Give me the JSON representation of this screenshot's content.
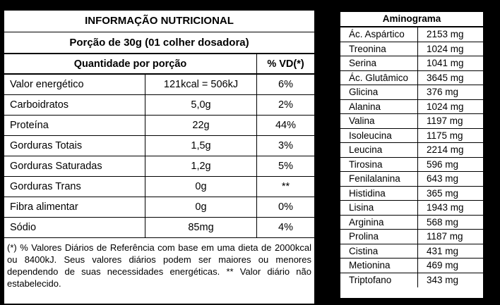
{
  "nutrition": {
    "title": "INFORMAÇÃO NUTRICIONAL",
    "portion": "Porção de 30g (01 colher dosadora)",
    "header": {
      "quantity": "Quantidade por porção",
      "vd": "% VD(*)"
    },
    "rows": [
      {
        "name": "Valor energético",
        "amount": "121kcal = 506kJ",
        "vd": "6%"
      },
      {
        "name": "Carboidratos",
        "amount": "5,0g",
        "vd": "2%"
      },
      {
        "name": "Proteína",
        "amount": "22g",
        "vd": "44%"
      },
      {
        "name": "Gorduras Totais",
        "amount": "1,5g",
        "vd": "3%"
      },
      {
        "name": "Gorduras Saturadas",
        "amount": "1,2g",
        "vd": "5%"
      },
      {
        "name": "Gorduras Trans",
        "amount": "0g",
        "vd": "**"
      },
      {
        "name": "Fibra alimentar",
        "amount": "0g",
        "vd": "0%"
      },
      {
        "name": "Sódio",
        "amount": "85mg",
        "vd": "4%"
      }
    ],
    "footnote": "(*) % Valores Diários de Referência com base em uma dieta de 2000kcal ou 8400kJ. Seus valores diários podem ser maiores ou menores dependendo de suas necessidades energéticas. ** Valor diário não estabelecido."
  },
  "aminogram": {
    "title": "Aminograma",
    "rows": [
      {
        "name": "Ác. Aspártico",
        "value": "2153 mg"
      },
      {
        "name": "Treonina",
        "value": "1024 mg"
      },
      {
        "name": "Serina",
        "value": "1041 mg"
      },
      {
        "name": "Ác. Glutâmico",
        "value": "3645 mg"
      },
      {
        "name": "Glicina",
        "value": "376 mg"
      },
      {
        "name": "Alanina",
        "value": "1024 mg"
      },
      {
        "name": "Valina",
        "value": "1197 mg"
      },
      {
        "name": "Isoleucina",
        "value": "1175 mg"
      },
      {
        "name": "Leucina",
        "value": "2214  mg"
      },
      {
        "name": "Tirosina",
        "value": "596 mg"
      },
      {
        "name": "Fenilalanina",
        "value": "643 mg"
      },
      {
        "name": "Histidina",
        "value": "365 mg"
      },
      {
        "name": "Lisina",
        "value": "1943 mg"
      },
      {
        "name": "Arginina",
        "value": "568 mg"
      },
      {
        "name": "Prolina",
        "value": "1187 mg"
      },
      {
        "name": "Cistina",
        "value": "431 mg"
      },
      {
        "name": "Metionina",
        "value": "469 mg"
      },
      {
        "name": "Triptofano",
        "value": "343 mg"
      }
    ]
  }
}
